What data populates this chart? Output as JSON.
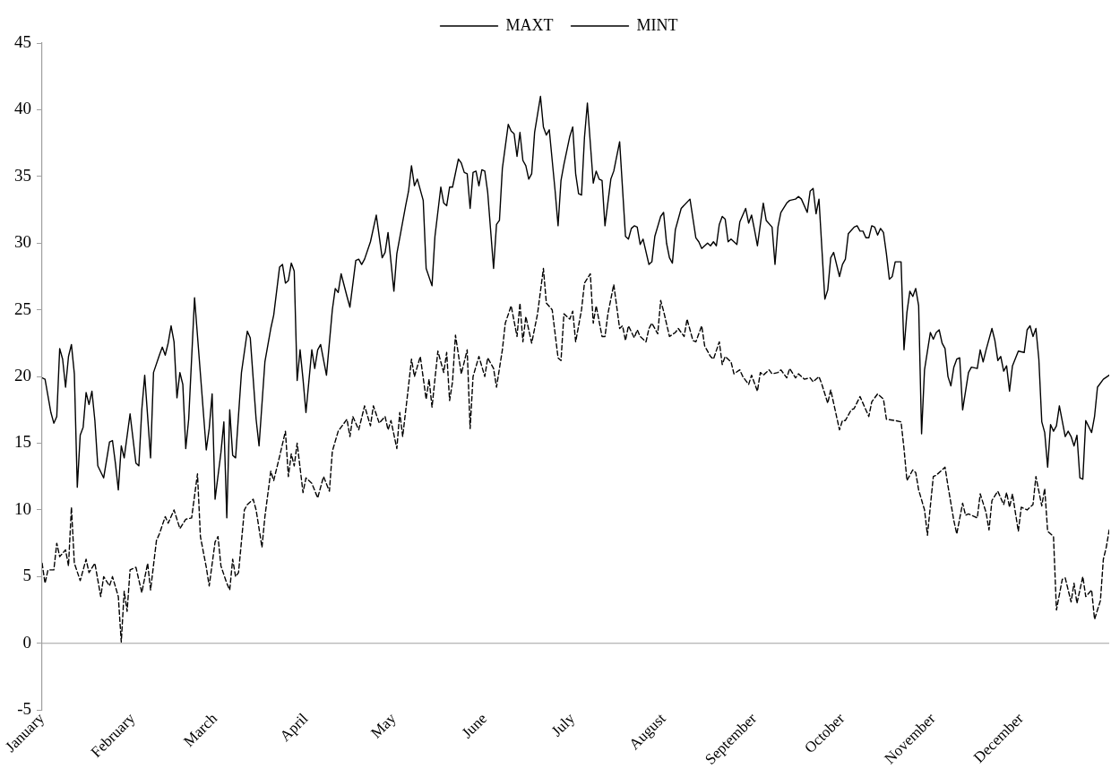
{
  "chart_data": {
    "type": "line",
    "legend": "top",
    "marker": "none",
    "grid": false,
    "xlim": [
      "--01-01",
      "--12-31"
    ],
    "xticks": [
      {
        "value": "--01-01",
        "label": "January"
      },
      {
        "value": "--02-01",
        "label": "February"
      },
      {
        "value": "--03-01",
        "label": "March"
      },
      {
        "value": "--04-01",
        "label": "April"
      },
      {
        "value": "--05-01",
        "label": "May"
      },
      {
        "value": "--06-01",
        "label": "June"
      },
      {
        "value": "--07-01",
        "label": "July"
      },
      {
        "value": "--08-01",
        "label": "August"
      },
      {
        "value": "--09-01",
        "label": "September"
      },
      {
        "value": "--10-01",
        "label": "October"
      },
      {
        "value": "--11-01",
        "label": "November"
      },
      {
        "value": "--12-01",
        "label": "December"
      }
    ],
    "ylim": [
      -5,
      45
    ],
    "yticks": [
      -5,
      0,
      5,
      10,
      15,
      20,
      25,
      30,
      35,
      40,
      45
    ],
    "ref_lines": [
      {
        "axis": "y",
        "value": 0,
        "color": "#a0a0a0"
      }
    ],
    "series": [
      {
        "name": "MAXT",
        "color": "#000000",
        "line_style": "solid",
        "x": [
          "--01-01",
          "--01-02",
          "--01-04",
          "--01-05",
          "--01-06",
          "--01-07",
          "--01-08",
          "--01-09",
          "--01-10",
          "--01-11",
          "--01-12",
          "--01-13",
          "--01-14",
          "--01-15",
          "--01-16",
          "--01-17",
          "--01-18",
          "--01-19",
          "--01-20",
          "--01-22",
          "--01-24",
          "--01-25",
          "--01-26",
          "--01-27",
          "--01-28",
          "--01-29",
          "--01-31",
          "--02-02",
          "--02-03",
          "--02-04",
          "--02-05",
          "--02-07",
          "--02-08",
          "--02-10",
          "--02-11",
          "--02-12",
          "--02-13",
          "--02-14",
          "--02-15",
          "--02-16",
          "--02-17",
          "--02-18",
          "--02-19",
          "--02-20",
          "--02-22",
          "--02-26",
          "--02-27",
          "--02-28",
          "--03-01",
          "--03-03",
          "--03-04",
          "--03-05",
          "--03-06",
          "--03-07",
          "--03-08",
          "--03-10",
          "--03-12",
          "--03-13",
          "--03-15",
          "--03-16",
          "--03-18",
          "--03-20",
          "--03-21",
          "--03-23",
          "--03-24",
          "--03-25",
          "--03-26",
          "--03-27",
          "--03-28",
          "--03-29",
          "--03-30",
          "--03-31",
          "--04-01",
          "--04-03",
          "--04-04",
          "--04-05",
          "--04-06",
          "--04-08",
          "--04-10",
          "--04-11",
          "--04-12",
          "--04-13",
          "--04-15",
          "--04-16",
          "--04-18",
          "--04-19",
          "--04-20",
          "--04-21",
          "--04-23",
          "--04-25",
          "--04-26",
          "--04-27",
          "--04-28",
          "--04-29",
          "--05-01",
          "--05-02",
          "--05-05",
          "--05-06",
          "--05-07",
          "--05-08",
          "--05-09",
          "--05-11",
          "--05-12",
          "--05-14",
          "--05-15",
          "--05-17",
          "--05-18",
          "--05-19",
          "--05-20",
          "--05-21",
          "--05-23",
          "--05-24",
          "--05-25",
          "--05-26",
          "--05-27",
          "--05-28",
          "--05-29",
          "--05-30",
          "--05-31",
          "--06-01",
          "--06-02",
          "--06-04",
          "--06-05",
          "--06-06",
          "--06-07",
          "--06-09",
          "--06-10",
          "--06-11",
          "--06-12",
          "--06-13",
          "--06-14",
          "--06-15",
          "--06-16",
          "--06-17",
          "--06-18",
          "--06-20",
          "--06-21",
          "--06-22",
          "--06-23",
          "--06-25",
          "--06-26",
          "--06-27",
          "--06-28",
          "--06-30",
          "--07-01",
          "--07-02",
          "--07-03",
          "--07-04",
          "--07-05",
          "--07-06",
          "--07-08",
          "--07-09",
          "--07-10",
          "--07-11",
          "--07-12",
          "--07-14",
          "--07-15",
          "--07-17",
          "--07-19",
          "--07-20",
          "--07-21",
          "--07-22",
          "--07-23",
          "--07-24",
          "--07-25",
          "--07-27",
          "--07-28",
          "--07-29",
          "--07-31",
          "--08-01",
          "--08-02",
          "--08-03",
          "--08-04",
          "--08-05",
          "--08-07",
          "--08-10",
          "--08-12",
          "--08-13",
          "--08-14",
          "--08-16",
          "--08-17",
          "--08-18",
          "--08-19",
          "--08-20",
          "--08-21",
          "--08-22",
          "--08-23",
          "--08-24",
          "--08-26",
          "--08-27",
          "--08-29",
          "--08-30",
          "--08-31",
          "--09-01",
          "--09-02",
          "--09-04",
          "--09-05",
          "--09-07",
          "--09-08",
          "--09-09",
          "--09-10",
          "--09-12",
          "--09-13",
          "--09-15",
          "--09-16",
          "--09-17",
          "--09-19",
          "--09-20",
          "--09-21",
          "--09-22",
          "--09-23",
          "--09-25",
          "--09-26",
          "--09-27",
          "--09-28",
          "--09-30",
          "--10-01",
          "--10-02",
          "--10-03",
          "--10-05",
          "--10-06",
          "--10-07",
          "--10-08",
          "--10-09",
          "--10-10",
          "--10-11",
          "--10-12",
          "--10-13",
          "--10-14",
          "--10-15",
          "--10-16",
          "--10-17",
          "--10-18",
          "--10-19",
          "--10-21",
          "--10-22",
          "--10-23",
          "--10-24",
          "--10-25",
          "--10-26",
          "--10-27",
          "--10-28",
          "--10-29",
          "--10-31",
          "--11-01",
          "--11-02",
          "--11-03",
          "--11-04",
          "--11-05",
          "--11-06",
          "--11-07",
          "--11-08",
          "--11-09",
          "--11-10",
          "--11-11",
          "--11-13",
          "--11-14",
          "--11-16",
          "--11-17",
          "--11-18",
          "--11-19",
          "--11-21",
          "--11-22",
          "--11-23",
          "--11-24",
          "--11-25",
          "--11-26",
          "--11-27",
          "--11-28",
          "--11-30",
          "--12-02",
          "--12-03",
          "--12-04",
          "--12-05",
          "--12-06",
          "--12-07",
          "--12-08",
          "--12-09",
          "--12-10",
          "--12-11",
          "--12-12",
          "--12-13",
          "--12-14",
          "--12-16",
          "--12-17",
          "--12-18",
          "--12-19",
          "--12-20",
          "--12-21",
          "--12-22",
          "--12-23",
          "--12-25",
          "--12-26",
          "--12-27",
          "--12-29",
          "--12-31"
        ],
        "values": [
          19.9,
          19.8,
          17.3,
          16.5,
          17,
          22.1,
          21.3,
          19.2,
          21.5,
          22.4,
          20.2,
          11.7,
          15.6,
          16.2,
          18.8,
          17.9,
          18.9,
          16.7,
          13.3,
          12.4,
          15.1,
          15.2,
          13.5,
          11.5,
          14.8,
          13.9,
          17.2,
          13.5,
          13.3,
          17.5,
          20.1,
          13.9,
          20.3,
          21.6,
          22.2,
          21.6,
          22.5,
          23.8,
          22.6,
          18.4,
          20.3,
          19.4,
          14.6,
          16.8,
          25.9,
          14.5,
          16.1,
          18.7,
          10.8,
          14.3,
          16.6,
          9.4,
          17.5,
          14.1,
          13.9,
          20.3,
          23.4,
          22.9,
          16.8,
          14.8,
          21.1,
          23.6,
          24.6,
          28.2,
          28.4,
          27,
          27.2,
          28.5,
          27.9,
          19.7,
          22,
          19.8,
          17.3,
          22,
          20.6,
          22,
          22.4,
          20.1,
          25,
          26.6,
          26.3,
          27.7,
          26,
          25.2,
          28.7,
          28.8,
          28.4,
          28.8,
          30.1,
          32.1,
          30.5,
          28.9,
          29.3,
          30.8,
          26.4,
          29.2,
          32.8,
          33.9,
          35.8,
          34.3,
          34.8,
          33.2,
          28.1,
          26.8,
          30.5,
          34.2,
          33,
          32.8,
          34.2,
          34.2,
          36.3,
          36,
          35.3,
          35.2,
          32.6,
          35.3,
          35.4,
          34.3,
          35.5,
          35.4,
          33.8,
          28.1,
          31.4,
          31.7,
          35.6,
          38.9,
          38.4,
          38.2,
          36.5,
          38.3,
          36.2,
          35.8,
          34.8,
          35.2,
          38.3,
          41,
          38.7,
          38.1,
          38.5,
          33.9,
          31.3,
          34.7,
          35.9,
          38,
          38.7,
          35.2,
          33.7,
          33.6,
          37.9,
          40.5,
          34.5,
          35.4,
          34.8,
          34.7,
          31.3,
          34.8,
          35.4,
          37.6,
          30.5,
          30.3,
          31.1,
          31.3,
          31.2,
          29.9,
          30.3,
          28.4,
          28.6,
          30.5,
          32,
          32.3,
          30,
          28.9,
          28.5,
          31,
          32.6,
          33.3,
          30.4,
          30.1,
          29.6,
          30,
          29.8,
          30.1,
          29.8,
          31.4,
          32,
          31.8,
          30.1,
          30.3,
          29.9,
          31.6,
          32.6,
          31.5,
          32.1,
          31,
          29.8,
          33,
          31.7,
          31.2,
          28.4,
          31.2,
          32.3,
          33,
          33.2,
          33.3,
          33.5,
          33.3,
          32.3,
          33.9,
          34.1,
          32.2,
          33.3,
          25.8,
          26.5,
          28.9,
          29.3,
          27.5,
          28.4,
          28.8,
          30.7,
          31.2,
          31.3,
          30.9,
          30.9,
          30.4,
          30.4,
          31.3,
          31.2,
          30.6,
          31.1,
          30.8,
          29.2,
          27.3,
          27.5,
          28.6,
          28.6,
          22,
          24.8,
          26.4,
          26,
          26.6,
          25.3,
          15.7,
          20.5,
          23.3,
          22.8,
          23.3,
          23.5,
          22.5,
          22.1,
          20,
          19.3,
          20.7,
          21.3,
          21.4,
          17.5,
          20.3,
          20.7,
          20.6,
          22,
          21.1,
          22,
          23.6,
          22.7,
          21.2,
          21.5,
          20.4,
          20.8,
          18.9,
          20.8,
          21.9,
          21.8,
          23.5,
          23.8,
          23,
          23.6,
          21.3,
          16.6,
          15.8,
          13.2,
          16.4,
          15.9,
          16.3,
          17.8,
          15.5,
          15.9,
          15.5,
          14.8,
          15.6,
          12.4,
          12.3,
          16.7,
          15.8,
          17,
          19.2,
          19.8,
          20.1
        ]
      },
      {
        "name": "MINT",
        "color": "#000000",
        "line_style": "dashed",
        "x": [
          "--01-01",
          "--01-02",
          "--01-03",
          "--01-05",
          "--01-06",
          "--01-07",
          "--01-09",
          "--01-10",
          "--01-11",
          "--01-12",
          "--01-14",
          "--01-16",
          "--01-17",
          "--01-19",
          "--01-21",
          "--01-22",
          "--01-24",
          "--01-25",
          "--01-27",
          "--01-28",
          "--01-29",
          "--01-30",
          "--01-31",
          "--02-02",
          "--02-04",
          "--02-06",
          "--02-07",
          "--02-09",
          "--02-10",
          "--02-12",
          "--02-13",
          "--02-15",
          "--02-17",
          "--02-19",
          "--02-21",
          "--02-23",
          "--02-24",
          "--02-26",
          "--02-27",
          "--03-01",
          "--03-02",
          "--03-03",
          "--03-05",
          "--03-06",
          "--03-07",
          "--03-08",
          "--03-09",
          "--03-11",
          "--03-12",
          "--03-14",
          "--03-15",
          "--03-17",
          "--03-18",
          "--03-20",
          "--03-21",
          "--03-23",
          "--03-25",
          "--03-26",
          "--03-27",
          "--03-28",
          "--03-29",
          "--03-31",
          "--04-01",
          "--04-03",
          "--04-05",
          "--04-07",
          "--04-09",
          "--04-10",
          "--04-12",
          "--04-15",
          "--04-16",
          "--04-17",
          "--04-19",
          "--04-21",
          "--04-23",
          "--04-24",
          "--04-26",
          "--04-28",
          "--04-29",
          "--04-30",
          "--05-02",
          "--05-03",
          "--05-04",
          "--05-06",
          "--05-07",
          "--05-08",
          "--05-10",
          "--05-12",
          "--05-13",
          "--05-14",
          "--05-16",
          "--05-18",
          "--05-19",
          "--05-20",
          "--05-21",
          "--05-22",
          "--05-24",
          "--05-26",
          "--05-27",
          "--05-28",
          "--05-30",
          "--06-01",
          "--06-02",
          "--06-04",
          "--06-05",
          "--06-07",
          "--06-08",
          "--06-10",
          "--06-12",
          "--06-13",
          "--06-14",
          "--06-15",
          "--06-17",
          "--06-19",
          "--06-21",
          "--06-22",
          "--06-24",
          "--06-26",
          "--06-27",
          "--06-28",
          "--06-30",
          "--07-01",
          "--07-02",
          "--07-04",
          "--07-05",
          "--07-07",
          "--07-08",
          "--07-09",
          "--07-11",
          "--07-12",
          "--07-13",
          "--07-15",
          "--07-17",
          "--07-18",
          "--07-19",
          "--07-20",
          "--07-22",
          "--07-23",
          "--07-24",
          "--07-26",
          "--07-27",
          "--07-28",
          "--07-30",
          "--07-31",
          "--08-01",
          "--08-03",
          "--08-05",
          "--08-06",
          "--08-08",
          "--08-09",
          "--08-11",
          "--08-12",
          "--08-14",
          "--08-15",
          "--08-17",
          "--08-18",
          "--08-20",
          "--08-21",
          "--08-22",
          "--08-24",
          "--08-25",
          "--08-27",
          "--08-28",
          "--08-30",
          "--08-31",
          "--09-02",
          "--09-03",
          "--09-04",
          "--09-06",
          "--09-07",
          "--09-09",
          "--09-10",
          "--09-12",
          "--09-13",
          "--09-15",
          "--09-16",
          "--09-18",
          "--09-20",
          "--09-21",
          "--09-23",
          "--09-24",
          "--09-26",
          "--09-27",
          "--09-28",
          "--09-30",
          "--10-01",
          "--10-02",
          "--10-04",
          "--10-05",
          "--10-07",
          "--10-08",
          "--10-10",
          "--10-11",
          "--10-13",
          "--10-15",
          "--10-16",
          "--10-19",
          "--10-21",
          "--10-22",
          "--10-23",
          "--10-24",
          "--10-25",
          "--10-26",
          "--10-27",
          "--10-29",
          "--10-30",
          "--11-01",
          "--11-02",
          "--11-05",
          "--11-06",
          "--11-08",
          "--11-09",
          "--11-11",
          "--11-12",
          "--11-13",
          "--11-15",
          "--11-16",
          "--11-17",
          "--11-19",
          "--11-20",
          "--11-21",
          "--11-23",
          "--11-25",
          "--11-26",
          "--11-27",
          "--11-28",
          "--11-30",
          "--12-01",
          "--12-03",
          "--12-05",
          "--12-06",
          "--12-08",
          "--12-09",
          "--12-10",
          "--12-12",
          "--12-13",
          "--12-15",
          "--12-16",
          "--12-18",
          "--12-19",
          "--12-20",
          "--12-22",
          "--12-23",
          "--12-25",
          "--12-26",
          "--12-28",
          "--12-29",
          "--12-30",
          "--12-31"
        ],
        "values": [
          6,
          4.5,
          5.5,
          5.5,
          7.5,
          6.5,
          7,
          5.8,
          10.2,
          6,
          4.7,
          6.3,
          5.3,
          6,
          3.5,
          5,
          4.3,
          5,
          3.5,
          0.1,
          3.9,
          2.4,
          5.5,
          5.7,
          3.8,
          6,
          4,
          7.7,
          8.2,
          9.5,
          9,
          10,
          8.6,
          9.3,
          9.4,
          12.7,
          8,
          5.7,
          4.3,
          7.6,
          8,
          5.8,
          4.5,
          4,
          6.3,
          5,
          5.3,
          10,
          10.4,
          10.8,
          10,
          7.2,
          9.5,
          12.9,
          12.2,
          14,
          15.9,
          12.5,
          14.2,
          13.3,
          15,
          11.3,
          12.4,
          12,
          10.9,
          12.5,
          11.4,
          14.4,
          15.9,
          16.8,
          15.5,
          17,
          16,
          17.8,
          16.3,
          17.8,
          16.5,
          17,
          16,
          16.7,
          14.6,
          17.3,
          15.5,
          19.3,
          21.3,
          20,
          21.5,
          18.3,
          19.8,
          17.7,
          21.9,
          20.3,
          21.8,
          18.2,
          19.6,
          23.1,
          20.2,
          22,
          16.1,
          20,
          21.5,
          20,
          21.4,
          20.6,
          19.2,
          22,
          24,
          25.3,
          23,
          25.5,
          22.6,
          24.5,
          22.5,
          24.7,
          28.1,
          25.5,
          25,
          21.4,
          21.2,
          24.7,
          24.3,
          24.9,
          22.6,
          25,
          27,
          27.7,
          24,
          25.3,
          23,
          23,
          24.7,
          26.9,
          23.6,
          23.8,
          22.7,
          23.8,
          22.9,
          23.5,
          23,
          22.6,
          23.6,
          24,
          23.2,
          25.7,
          24.9,
          23,
          23.3,
          23.6,
          23,
          24.3,
          22.7,
          22.6,
          23.8,
          22.3,
          21.5,
          21.3,
          22.6,
          20.9,
          21.5,
          21.1,
          20.2,
          20.5,
          20,
          19.4,
          20.1,
          18.9,
          20.3,
          20.1,
          20.5,
          20.2,
          20.3,
          20.5,
          19.9,
          20.6,
          19.9,
          20.2,
          19.8,
          19.9,
          19.6,
          20,
          19.4,
          18,
          19,
          18,
          16,
          16.7,
          16.7,
          17.5,
          17.6,
          18.5,
          18,
          17,
          18.1,
          18.7,
          18.3,
          16.8,
          16.7,
          16.6,
          14.6,
          12.2,
          12.6,
          13,
          12.8,
          11.5,
          10,
          8.1,
          12.5,
          12.6,
          13.2,
          11.8,
          9.2,
          8.2,
          10.5,
          9.6,
          9.7,
          9.5,
          9.4,
          11.2,
          9.8,
          8.5,
          10.7,
          11.4,
          10.4,
          11.3,
          10.2,
          11.2,
          8.4,
          10.2,
          10,
          10.4,
          12.5,
          10.3,
          11.6,
          8.4,
          8,
          2.5,
          4.8,
          4.9,
          3.1,
          4.5,
          3,
          5,
          3.5,
          4,
          1.8,
          3.2,
          6.3,
          7.2,
          8.5
        ]
      }
    ]
  }
}
